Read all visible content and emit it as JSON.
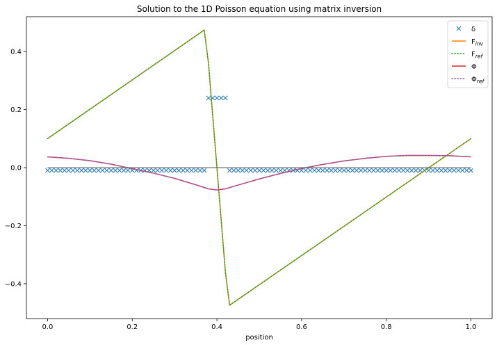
{
  "chart_data": {
    "type": "line",
    "title": "Solution to the 1D Poisson equation using matrix inversion",
    "xlabel": "position",
    "ylabel": "",
    "xlim": [
      -0.05,
      1.05
    ],
    "ylim": [
      -0.52,
      0.52
    ],
    "xticks": [
      0.0,
      0.2,
      0.4,
      0.6,
      0.8,
      1.0
    ],
    "xtick_labels": [
      "0.0",
      "0.2",
      "0.4",
      "0.6",
      "0.8",
      "1.0"
    ],
    "yticks": [
      -0.4,
      -0.2,
      0.0,
      0.2,
      0.4
    ],
    "ytick_labels": [
      "−0.4",
      "−0.2",
      "0.0",
      "0.2",
      "0.4"
    ],
    "grid": false,
    "legend_position": "top-right",
    "series": [
      {
        "key": "delta",
        "name": "δ",
        "style": "markers-x",
        "color": "#1f77b4",
        "x_start": 0.0,
        "x_step": 0.01,
        "count": 101,
        "baseline_value": -0.0096,
        "peak_value": 0.24,
        "peak_x_range": [
          0.38,
          0.42
        ]
      },
      {
        "key": "F_inv",
        "name": "F",
        "subscript": "inv",
        "style": "solid",
        "color": "#ff7f0e",
        "x": [
          0.0,
          0.37,
          0.38,
          0.42,
          0.43,
          1.0
        ],
        "y": [
          0.1,
          0.474,
          0.36,
          -0.36,
          -0.474,
          0.1
        ]
      },
      {
        "key": "F_ref",
        "name": "F",
        "subscript": "ref",
        "style": "dotted",
        "color": "#2ca02c",
        "x": [
          0.0,
          0.37,
          0.38,
          0.42,
          0.43,
          1.0
        ],
        "y": [
          0.1,
          0.474,
          0.36,
          -0.36,
          -0.474,
          0.1
        ]
      },
      {
        "key": "Phi",
        "name": "Φ",
        "style": "solid",
        "color": "#d62728",
        "x": [
          0.0,
          0.05,
          0.1,
          0.15,
          0.2,
          0.25,
          0.3,
          0.35,
          0.38,
          0.4,
          0.42,
          0.45,
          0.5,
          0.55,
          0.6,
          0.65,
          0.7,
          0.75,
          0.8,
          0.85,
          0.9,
          0.95,
          1.0
        ],
        "y": [
          0.037,
          0.032,
          0.024,
          0.012,
          -0.004,
          -0.019,
          -0.037,
          -0.059,
          -0.073,
          -0.077,
          -0.073,
          -0.06,
          -0.039,
          -0.02,
          -0.003,
          0.011,
          0.023,
          0.032,
          0.039,
          0.042,
          0.042,
          0.041,
          0.037
        ]
      },
      {
        "key": "Phi_ref",
        "name": "Φ",
        "subscript": "ref",
        "style": "dotted",
        "color": "#9467bd",
        "x": [
          0.0,
          0.05,
          0.1,
          0.15,
          0.2,
          0.25,
          0.3,
          0.35,
          0.38,
          0.4,
          0.42,
          0.45,
          0.5,
          0.55,
          0.6,
          0.65,
          0.7,
          0.75,
          0.8,
          0.85,
          0.9,
          0.95,
          1.0
        ],
        "y": [
          0.037,
          0.032,
          0.024,
          0.012,
          -0.004,
          -0.019,
          -0.037,
          -0.059,
          -0.073,
          -0.077,
          -0.073,
          -0.06,
          -0.039,
          -0.02,
          -0.003,
          0.011,
          0.023,
          0.032,
          0.039,
          0.042,
          0.042,
          0.041,
          0.037
        ]
      },
      {
        "key": "zero_line",
        "name": "",
        "style": "solid-thin",
        "color": "#555555",
        "x": [
          0.0,
          1.0
        ],
        "y": [
          0.0,
          0.0
        ]
      }
    ]
  }
}
